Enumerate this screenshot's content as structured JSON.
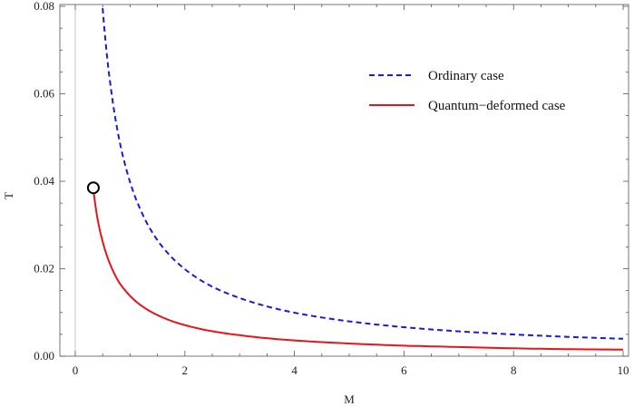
{
  "chart_data": {
    "type": "line",
    "title": "",
    "xlabel": "M",
    "ylabel": "T",
    "xlim": [
      -0.3,
      10
    ],
    "ylim": [
      0,
      0.08
    ],
    "xticks": [
      0,
      2,
      4,
      6,
      8,
      10
    ],
    "xtick_labels": [
      "0",
      "2",
      "4",
      "6",
      "8",
      "10"
    ],
    "yticks": [
      0,
      0.02,
      0.04,
      0.06,
      0.08
    ],
    "ytick_labels": [
      "0.00",
      "0.02",
      "0.04",
      "0.06",
      "0.08"
    ],
    "grid": false,
    "legend_position": "top-right",
    "series": [
      {
        "name": "Ordinary case",
        "color": "#1a1adb",
        "style": "dashed",
        "x": [
          0.5,
          0.6,
          0.7,
          0.8,
          1.0,
          1.2,
          1.5,
          2.0,
          2.5,
          3.0,
          4.0,
          5.0,
          6.0,
          7.0,
          8.0,
          9.0,
          10.0
        ],
        "y": [
          0.0796,
          0.0663,
          0.0568,
          0.0497,
          0.0398,
          0.0332,
          0.0265,
          0.0199,
          0.0159,
          0.0133,
          0.00995,
          0.00796,
          0.00663,
          0.00568,
          0.00497,
          0.00442,
          0.00398
        ]
      },
      {
        "name": "Quantum−deformed case",
        "color": "#e8141c",
        "style": "solid",
        "x": [
          0.33,
          0.4,
          0.5,
          0.6,
          0.7,
          0.8,
          1.0,
          1.2,
          1.5,
          2.0,
          2.5,
          3.0,
          4.0,
          5.0,
          6.0,
          7.0,
          8.0,
          9.0,
          10.0
        ],
        "y": [
          0.0382,
          0.0318,
          0.0262,
          0.0222,
          0.0192,
          0.0169,
          0.0138,
          0.0116,
          0.0094,
          0.0071,
          0.0057,
          0.0048,
          0.0036,
          0.0029,
          0.0024,
          0.0021,
          0.0018,
          0.0016,
          0.0015
        ]
      }
    ],
    "annotations": [
      {
        "type": "circle-marker",
        "x": 0.33,
        "y": 0.0385
      }
    ]
  }
}
